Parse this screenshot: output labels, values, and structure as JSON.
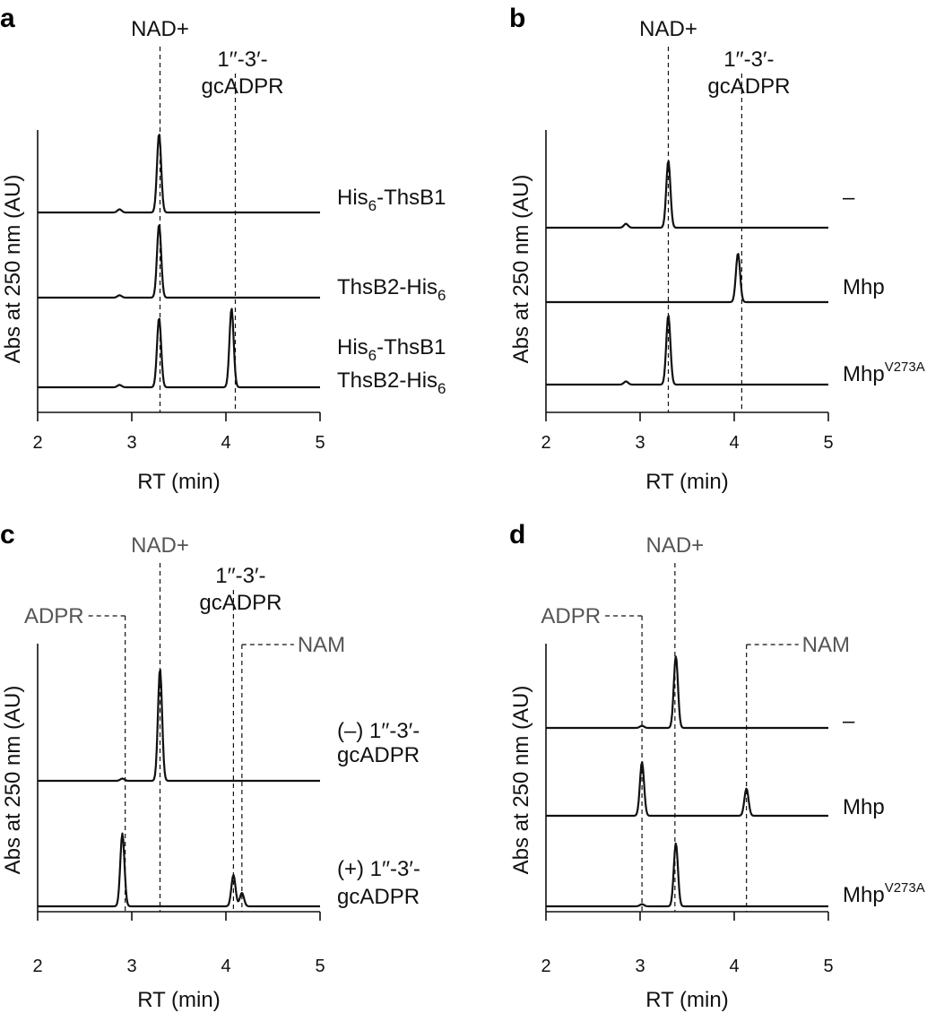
{
  "chart_data": [
    {
      "panel": "a",
      "type": "line",
      "xlabel": "RT (min)",
      "ylabel": "Abs at 250 nm (AU)",
      "xlim": [
        2,
        5
      ],
      "xticks": [
        2,
        3,
        4,
        5
      ],
      "markers": [
        {
          "name": "NAD+",
          "x": 3.3,
          "lines": [
            "NAD+"
          ],
          "color": "#111111"
        },
        {
          "name": "1''-3'-gcADPR",
          "x": 4.1,
          "lines": [
            "1′′-3′-",
            "gcADPR"
          ],
          "color": "#111111"
        }
      ],
      "series": [
        {
          "label": {
            "text": "His",
            "sub": "6",
            "after": "-ThsB1"
          },
          "label2": null,
          "baseline": 0,
          "peaks": [
            {
              "x": 2.87,
              "h": 0.04
            },
            {
              "x": 3.29,
              "h": 1.0
            }
          ]
        },
        {
          "label": {
            "text": "ThsB2-His",
            "sub": "6",
            "after": ""
          },
          "label2": null,
          "baseline": 0,
          "peaks": [
            {
              "x": 2.87,
              "h": 0.03
            },
            {
              "x": 3.29,
              "h": 0.93
            }
          ]
        },
        {
          "label": {
            "text": "His",
            "sub": "6",
            "after": "-ThsB1"
          },
          "label2": {
            "text": "ThsB2-His",
            "sub": "6",
            "after": ""
          },
          "baseline": 0,
          "peaks": [
            {
              "x": 2.87,
              "h": 0.03
            },
            {
              "x": 3.29,
              "h": 0.88
            },
            {
              "x": 4.06,
              "h": 1.0
            }
          ]
        }
      ]
    },
    {
      "panel": "b",
      "type": "line",
      "xlabel": "RT (min)",
      "ylabel": "Abs at 250 nm (AU)",
      "xlim": [
        2,
        5
      ],
      "xticks": [
        2,
        3,
        4,
        5
      ],
      "markers": [
        {
          "name": "NAD+",
          "x": 3.3,
          "lines": [
            "NAD+"
          ],
          "color": "#111111"
        },
        {
          "name": "1''-3'-gcADPR",
          "x": 4.08,
          "lines": [
            "1′′-3′-",
            "gcADPR"
          ],
          "color": "#111111"
        }
      ],
      "series": [
        {
          "label": {
            "text": "–",
            "sub": "",
            "sup": "",
            "after": ""
          },
          "label2": null,
          "baseline": 0,
          "peaks": [
            {
              "x": 2.85,
              "h": 0.05
            },
            {
              "x": 3.3,
              "h": 0.85
            }
          ]
        },
        {
          "label": {
            "text": "Mhp",
            "sub": "",
            "sup": "",
            "after": ""
          },
          "label2": null,
          "baseline": 0,
          "peaks": [
            {
              "x": 4.04,
              "h": 0.62
            }
          ]
        },
        {
          "label": {
            "text": "Mhp",
            "sub": "",
            "sup": "V273A",
            "after": ""
          },
          "label2": null,
          "baseline": 0,
          "peaks": [
            {
              "x": 2.85,
              "h": 0.04
            },
            {
              "x": 3.3,
              "h": 0.88
            }
          ]
        }
      ]
    },
    {
      "panel": "c",
      "type": "line",
      "xlabel": "RT (min)",
      "ylabel": "Abs at 250 nm (AU)",
      "xlim": [
        2,
        5
      ],
      "xticks": [
        2,
        3,
        4,
        5
      ],
      "markers": [
        {
          "name": "NAD+",
          "x": 3.3,
          "lines": [
            "NAD+"
          ],
          "color": "#555555"
        },
        {
          "name": "1''-3'-gcADPR",
          "x": 4.08,
          "lines": [
            "1′′-3′-",
            "gcADPR"
          ],
          "color": "#111111"
        },
        {
          "name": "ADPR",
          "x": 2.93,
          "lines": [
            "ADPR"
          ],
          "color": "#555555",
          "side": "left"
        },
        {
          "name": "NAM",
          "x": 4.17,
          "lines": [
            "NAM"
          ],
          "color": "#555555",
          "side": "right"
        }
      ],
      "series": [
        {
          "label": {
            "text": "(–) 1′′-3′-",
            "sub": "",
            "sup": "",
            "after": ""
          },
          "label2": {
            "text": "gcADPR",
            "sub": "",
            "sup": "",
            "after": ""
          },
          "baseline": 0,
          "peaks": [
            {
              "x": 2.9,
              "h": 0.02
            },
            {
              "x": 3.3,
              "h": 1.0
            }
          ]
        },
        {
          "label": {
            "text": "(+) 1′′-3′-",
            "sub": "",
            "sup": "",
            "after": ""
          },
          "label2": {
            "text": "gcADPR",
            "sub": "",
            "sup": "",
            "after": ""
          },
          "baseline": 0,
          "peaks": [
            {
              "x": 2.9,
              "h": 0.65
            },
            {
              "x": 4.08,
              "h": 0.28
            },
            {
              "x": 4.17,
              "h": 0.12
            }
          ]
        }
      ]
    },
    {
      "panel": "d",
      "type": "line",
      "xlabel": "RT (min)",
      "ylabel": "Abs at 250 nm (AU)",
      "xlim": [
        2,
        5
      ],
      "xticks": [
        2,
        3,
        4,
        5
      ],
      "markers": [
        {
          "name": "NAD+",
          "x": 3.37,
          "lines": [
            "NAD+"
          ],
          "color": "#555555"
        },
        {
          "name": "ADPR",
          "x": 3.02,
          "lines": [
            "ADPR"
          ],
          "color": "#555555",
          "side": "left"
        },
        {
          "name": "NAM",
          "x": 4.13,
          "lines": [
            "NAM"
          ],
          "color": "#555555",
          "side": "right"
        }
      ],
      "series": [
        {
          "label": {
            "text": "–",
            "sub": "",
            "sup": "",
            "after": ""
          },
          "label2": null,
          "baseline": 0,
          "peaks": [
            {
              "x": 3.02,
              "h": 0.03
            },
            {
              "x": 3.38,
              "h": 1.0
            }
          ]
        },
        {
          "label": {
            "text": "Mhp",
            "sub": "",
            "sup": "",
            "after": ""
          },
          "label2": null,
          "baseline": 0,
          "peaks": [
            {
              "x": 3.02,
              "h": 0.75
            },
            {
              "x": 4.13,
              "h": 0.38
            }
          ]
        },
        {
          "label": {
            "text": "Mhp",
            "sub": "",
            "sup": "V273A",
            "after": ""
          },
          "label2": null,
          "baseline": 0,
          "peaks": [
            {
              "x": 3.02,
              "h": 0.03
            },
            {
              "x": 3.38,
              "h": 0.88
            }
          ]
        }
      ]
    }
  ]
}
